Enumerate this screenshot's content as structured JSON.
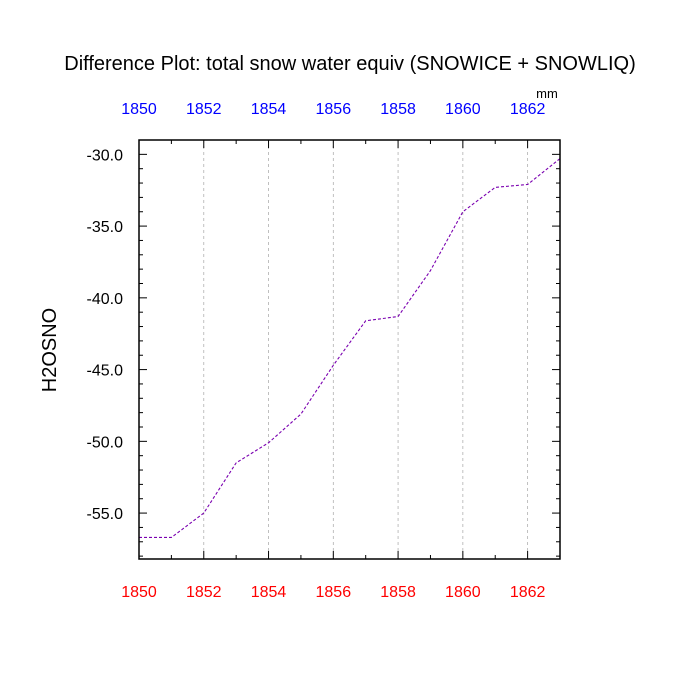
{
  "chart_data": {
    "type": "line",
    "title": "Difference Plot: total snow water equiv (SNOWICE + SNOWLIQ)",
    "ylabel": "H2OSNO",
    "units": "mm",
    "x": [
      1850,
      1851,
      1852,
      1853,
      1854,
      1855,
      1856,
      1857,
      1858,
      1859,
      1860,
      1861,
      1862,
      1863
    ],
    "series": [
      {
        "values": [
          -56.7,
          -56.7,
          -55.0,
          -51.5,
          -50.1,
          -48.1,
          -44.7,
          -41.6,
          -41.3,
          -38.1,
          -34.0,
          -32.3,
          -32.1,
          -30.3
        ],
        "color": "#7a00b0",
        "dash": "dashed"
      }
    ],
    "xlim": [
      1850,
      1863
    ],
    "ylim": [
      -58.2,
      -29.0
    ],
    "x_ticks": [
      "1850",
      "1852",
      "1854",
      "1856",
      "1858",
      "1860",
      "1862"
    ],
    "y_ticks": [
      "-30.0",
      "-35.0",
      "-40.0",
      "-45.0",
      "-50.0",
      "-55.0"
    ],
    "top_axis_color": "#0000ff",
    "bottom_axis_color": "#ff0000",
    "grid": "vertical dashed",
    "legend": "none"
  }
}
